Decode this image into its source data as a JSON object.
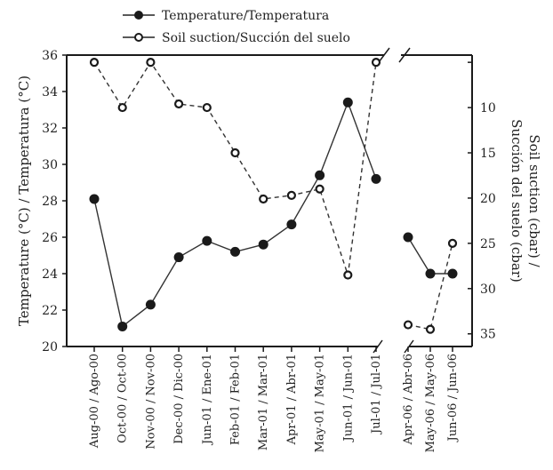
{
  "chart_data": {
    "type": "line",
    "title": "",
    "categories": [
      "Aug-00 / Ago-00",
      "Oct-00 / Oct-00",
      "Nov-00 / Nov-00",
      "Dec-00 / Dic-00",
      "Jun-01 / Ene-01",
      "Feb-01 / Feb-01",
      "Mar-01 / Mar-01",
      "Apr-01 / Abr-01",
      "May-01 / May-01",
      "Jun-01 / Jun-01",
      "Jul-01 / Jul-01",
      "Apr-06 / Abr-06",
      "May-06 / May-06",
      "Jun-06 / Jun-06"
    ],
    "axis_break_after_index": 10,
    "series": [
      {
        "name": "Temperature / Temperatura",
        "axis": "left",
        "marker": "filled-circle",
        "line": "solid",
        "values": [
          28.1,
          21.1,
          22.3,
          24.9,
          25.8,
          25.2,
          25.6,
          26.7,
          29.4,
          33.4,
          29.2,
          26.0,
          24.0,
          24.0
        ]
      },
      {
        "name": "Soil suction / Succión del suelo",
        "axis": "right",
        "marker": "open-circle",
        "line": "dashed",
        "values": [
          5,
          10,
          5,
          9.6,
          10,
          15,
          20.1,
          19.7,
          19.0,
          28.5,
          5,
          34.0,
          34.5,
          25
        ]
      }
    ],
    "left_axis": {
      "label": "Temperature (°C) / Temperatura (°C)",
      "ylim": [
        20,
        36
      ],
      "ticks": [
        "20",
        "22",
        "24",
        "26",
        "28",
        "30",
        "32",
        "34",
        "36"
      ],
      "tick_values": [
        20,
        22,
        24,
        26,
        28,
        30,
        32,
        34,
        36
      ]
    },
    "right_axis": {
      "label_line1": "Soil suction (cbar) /",
      "label_line2": "Succión del suelo (cbar)",
      "ylim": [
        36.4,
        4.2
      ],
      "inverted": true,
      "ticks": [
        "10",
        "15",
        "20",
        "25",
        "30",
        "35"
      ],
      "tick_values": [
        10,
        15,
        20,
        25,
        30,
        35
      ],
      "minor_unlabeled_tick": 5
    },
    "legend": {
      "position": "top-center",
      "entries": [
        "Temperature/Temperatura",
        "Soil suction/Succión del suelo"
      ]
    },
    "grid": false
  }
}
